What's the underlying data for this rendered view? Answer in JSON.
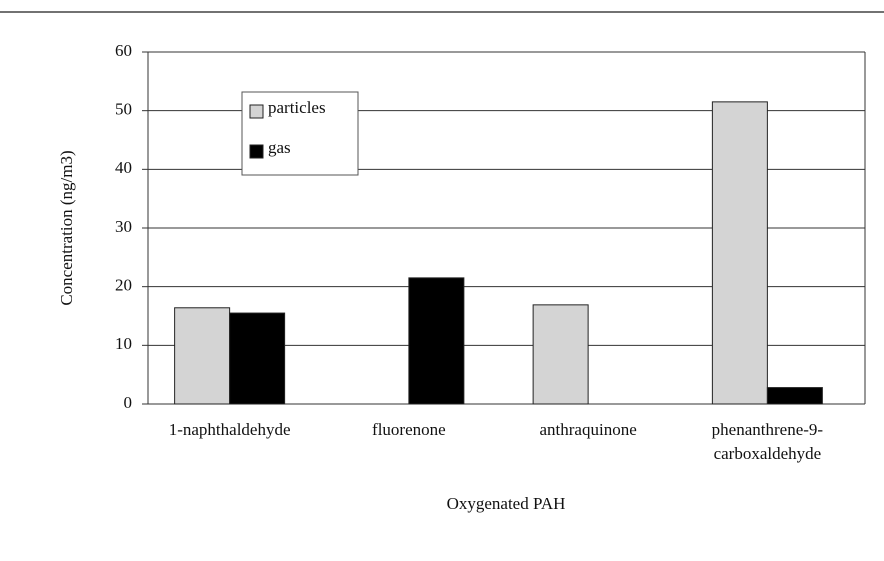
{
  "chart_data": {
    "type": "bar",
    "x_label": "Oxygenated PAH",
    "y_label": "Concentration (ng/m3)",
    "categories": [
      "1-naphthaldehyde",
      "fluorenone",
      "anthraquinone",
      "phenanthrene-9-\ncarboxaldehyde"
    ],
    "series": [
      {
        "name": "particles",
        "color": "#d4d4d4",
        "values": [
          16.4,
          0,
          16.9,
          51.5
        ]
      },
      {
        "name": "gas",
        "color": "#000000",
        "values": [
          15.5,
          21.5,
          0,
          2.8
        ]
      }
    ],
    "ylim": [
      0,
      60
    ],
    "yticks": [
      0,
      10,
      20,
      30,
      40,
      50,
      60
    ],
    "grid": true
  }
}
